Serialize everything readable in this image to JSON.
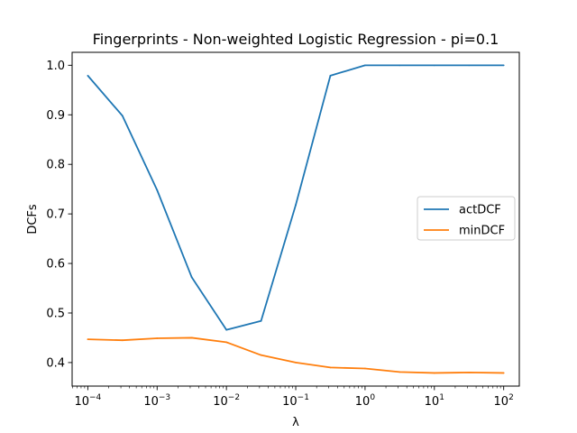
{
  "chart_data": {
    "type": "line",
    "title": "Fingerprints - Non-weighted Logistic Regression - pi=0.1",
    "xlabel": "λ",
    "ylabel": "DCFs",
    "xscale": "log",
    "xlim": [
      5.94e-05,
      168
    ],
    "ylim": [
      0.3525,
      1.0261
    ],
    "x": [
      0.0001,
      0.000316,
      0.001,
      0.00316,
      0.01,
      0.0316,
      0.1,
      0.316,
      1,
      3.16,
      10,
      31.6,
      100
    ],
    "x_ticks": [
      {
        "value": 0.0001,
        "mantissa": "10",
        "exp": "−4"
      },
      {
        "value": 0.001,
        "mantissa": "10",
        "exp": "−3"
      },
      {
        "value": 0.01,
        "mantissa": "10",
        "exp": "−2"
      },
      {
        "value": 0.1,
        "mantissa": "10",
        "exp": "−1"
      },
      {
        "value": 1,
        "mantissa": "10",
        "exp": "0"
      },
      {
        "value": 10,
        "mantissa": "10",
        "exp": "1"
      },
      {
        "value": 100,
        "mantissa": "10",
        "exp": "2"
      }
    ],
    "y_ticks": [
      {
        "value": 0.4,
        "label": "0.4"
      },
      {
        "value": 0.5,
        "label": "0.5"
      },
      {
        "value": 0.6,
        "label": "0.6"
      },
      {
        "value": 0.7,
        "label": "0.7"
      },
      {
        "value": 0.8,
        "label": "0.8"
      },
      {
        "value": 0.9,
        "label": "0.9"
      },
      {
        "value": 1.0,
        "label": "1.0"
      }
    ],
    "series": [
      {
        "name": "actDCF",
        "color": "#1f77b4",
        "values": [
          0.979,
          0.898,
          0.748,
          0.572,
          0.466,
          0.484,
          0.718,
          0.979,
          1.0,
          1.0,
          1.0,
          1.0,
          1.0
        ]
      },
      {
        "name": "minDCF",
        "color": "#ff7f0e",
        "values": [
          0.447,
          0.445,
          0.449,
          0.45,
          0.441,
          0.415,
          0.4,
          0.39,
          0.388,
          0.381,
          0.379,
          0.38,
          0.379
        ]
      }
    ],
    "grid": false,
    "legend_position": "center-right"
  }
}
